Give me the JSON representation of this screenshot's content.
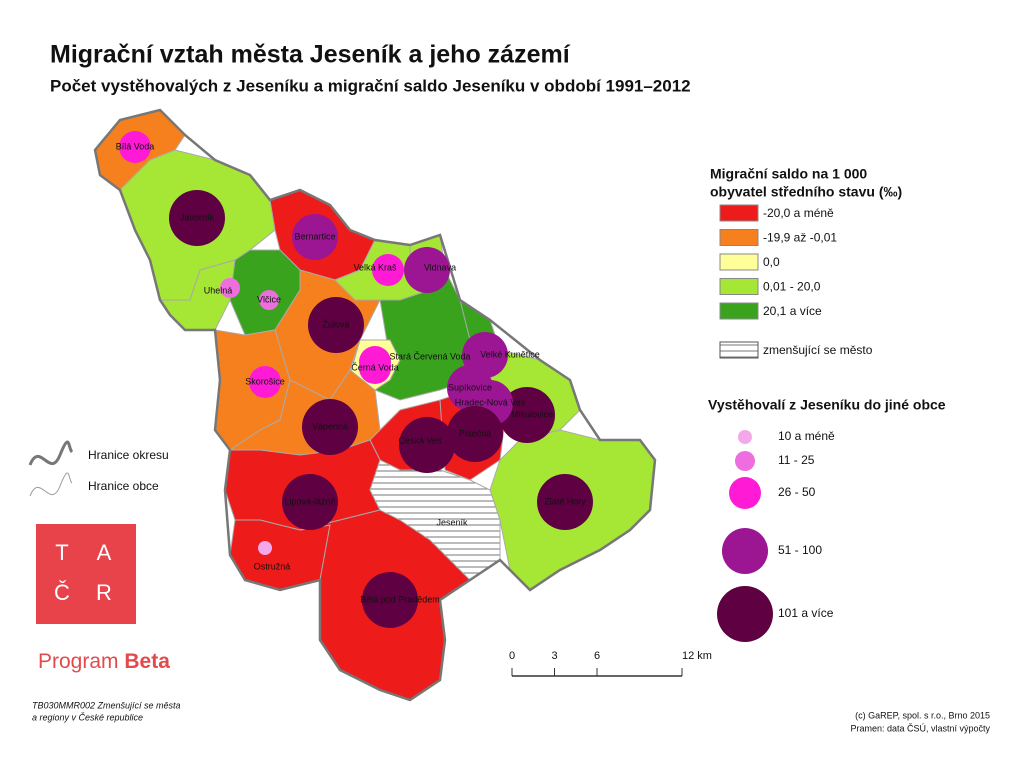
{
  "title": "Migrační vztah města Jeseník a jeho zázemí",
  "subtitle": "Počet vystěhovalých z Jeseníku a migrační saldo Jeseníku v období 1991–2012",
  "legend_saldo": {
    "title": [
      "Migrační saldo na 1 000",
      "obyvatel středního stavu (‰)"
    ],
    "items": [
      {
        "label": "-20,0 a méně",
        "color": "#ee1b1b"
      },
      {
        "label": "-19,9 až -0,01",
        "color": "#f7801e"
      },
      {
        "label": "0,0",
        "color": "#ffff99"
      },
      {
        "label": "0,01 - 20,0",
        "color": "#a6e635"
      },
      {
        "label": "20,1 a více",
        "color": "#3aa31e"
      }
    ],
    "shrinking": "zmenšující se město"
  },
  "legend_emigrants": {
    "title": "Vystěhovalí z Jeseníku do jiné obce",
    "items": [
      {
        "label": "10 a méně",
        "color": "#f4a8ea"
      },
      {
        "label": "11 - 25",
        "color": "#ee6ee0"
      },
      {
        "label": "26 - 50",
        "color": "#ff1bd6"
      },
      {
        "label": "51 - 100",
        "color": "#9c1593"
      },
      {
        "label": "101 a více",
        "color": "#5e0042"
      }
    ]
  },
  "boundaries": [
    "Hranice okresu",
    "Hranice obce"
  ],
  "logo": {
    "letters": [
      "T",
      "A",
      "Č",
      "R"
    ],
    "program": "Program",
    "beta": "Beta"
  },
  "scale": {
    "ticks": [
      0,
      3,
      6,
      {
        "value": 12,
        "label": "12 km"
      }
    ]
  },
  "footer_left": [
    "TB030MMR002 Zmenšující se města",
    "a regiony v České republice"
  ],
  "credits": [
    "(c) GaREP, spol. s r.o., Brno 2015",
    "Pramen: data ČSÚ, vlastní výpočty"
  ],
  "municipalities": [
    {
      "name": "Bílá Voda",
      "color": "#f7801e",
      "circle_color": "#ff1bd6"
    },
    {
      "name": "Javorník",
      "color": "#a6e635",
      "circle_color": "#5e0042"
    },
    {
      "name": "Bernartice",
      "color": "#ee1b1b",
      "circle_color": "#9c1593"
    },
    {
      "name": "Velká Kraš",
      "color": "#a6e635",
      "circle_color": "#ff1bd6"
    },
    {
      "name": "Vidnava",
      "color": "#a6e635",
      "circle_color": "#9c1593"
    },
    {
      "name": "Uhelná",
      "color": "#a6e635",
      "circle_color": "#ee6ee0"
    },
    {
      "name": "Vlčice",
      "color": "#3aa31e",
      "circle_color": "#ee6ee0"
    },
    {
      "name": "Žulová",
      "color": "#f7801e",
      "circle_color": "#5e0042"
    },
    {
      "name": "Stará Červená Voda",
      "color": "#3aa31e",
      "circle_color": "#ff1bd6"
    },
    {
      "name": "Černá Voda",
      "color": "#ffff99",
      "circle_color": "#ff1bd6"
    },
    {
      "name": "Velké Kunětice",
      "color": "#3aa31e",
      "circle_color": "#9c1593"
    },
    {
      "name": "Skorošice",
      "color": "#f7801e",
      "circle_color": "#ff1bd6"
    },
    {
      "name": "Mikulovice",
      "color": "#a6e635",
      "circle_color": "#5e0042"
    },
    {
      "name": "Supíkovice",
      "color": "#3aa31e",
      "circle_color": "#9c1593"
    },
    {
      "name": "Hradec-Nová Ves",
      "color": "#a6e635",
      "circle_color": "#9c1593"
    },
    {
      "name": "Vápenná",
      "color": "#f7801e",
      "circle_color": "#5e0042"
    },
    {
      "name": "Česká Ves",
      "color": "#ee1b1b",
      "circle_color": "#5e0042"
    },
    {
      "name": "Písečná",
      "color": "#ee1b1b",
      "circle_color": "#5e0042"
    },
    {
      "name": "Zlaté Hory",
      "color": "#a6e635",
      "circle_color": "#5e0042"
    },
    {
      "name": "Lipová-lázně",
      "color": "#ee1b1b",
      "circle_color": "#5e0042"
    },
    {
      "name": "Ostružná",
      "color": "#ee1b1b",
      "circle_color": "#f4a8ea"
    },
    {
      "name": "Bělá pod Pradědem",
      "color": "#ee1b1b",
      "circle_color": "#5e0042"
    },
    {
      "name": "Jeseník",
      "color": "hatch",
      "circle_color": null
    }
  ]
}
